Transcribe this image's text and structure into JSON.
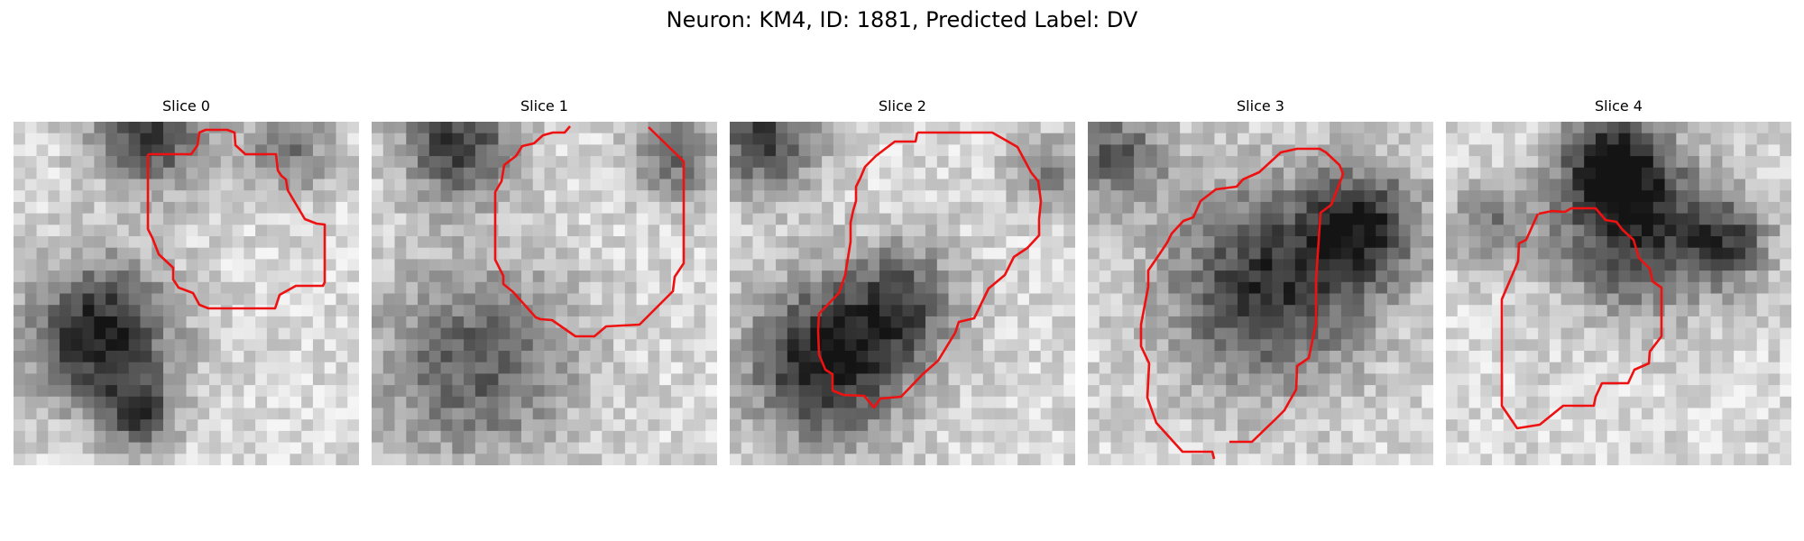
{
  "figure": {
    "title": "Neuron: KM4, ID: 1881, Predicted Label: DV",
    "contour_color": "#ee1111"
  },
  "panels": [
    {
      "title": "Slice 0"
    },
    {
      "title": "Slice 1"
    },
    {
      "title": "Slice 2"
    },
    {
      "title": "Slice 3"
    },
    {
      "title": "Slice 4"
    }
  ]
}
